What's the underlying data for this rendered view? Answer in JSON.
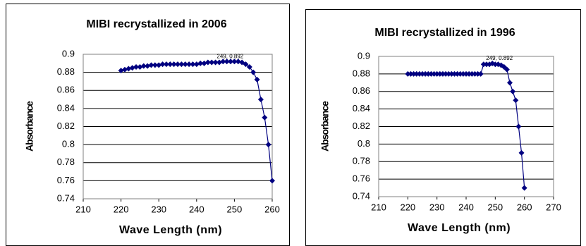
{
  "chart_data": [
    {
      "type": "line",
      "title": "MIBI recrystallized in 2006",
      "xlabel": "Wave Length (nm)",
      "ylabel": "Absorbance",
      "annotation": "249, 0.892",
      "x": [
        220,
        221,
        222,
        223,
        224,
        225,
        226,
        227,
        228,
        229,
        230,
        231,
        232,
        233,
        234,
        235,
        236,
        237,
        238,
        239,
        240,
        241,
        242,
        243,
        244,
        245,
        246,
        247,
        248,
        249,
        250,
        251,
        252,
        253,
        254,
        255,
        256,
        257,
        258,
        259,
        260
      ],
      "series": [
        {
          "color": "#000080",
          "values": [
            0.882,
            0.883,
            0.884,
            0.885,
            0.886,
            0.886,
            0.887,
            0.887,
            0.888,
            0.888,
            0.888,
            0.889,
            0.889,
            0.889,
            0.889,
            0.889,
            0.889,
            0.889,
            0.889,
            0.889,
            0.889,
            0.89,
            0.89,
            0.891,
            0.891,
            0.891,
            0.891,
            0.892,
            0.892,
            0.892,
            0.892,
            0.892,
            0.891,
            0.889,
            0.886,
            0.88,
            0.872,
            0.85,
            0.83,
            0.8,
            0.76
          ]
        }
      ],
      "xlim": [
        210,
        260
      ],
      "xticks": [
        210,
        220,
        230,
        240,
        250,
        260
      ],
      "ylim": [
        0.74,
        0.9
      ],
      "yticks": [
        0.74,
        0.76,
        0.78,
        0.8,
        0.82,
        0.84,
        0.86,
        0.88,
        0.9
      ],
      "grid": true
    },
    {
      "type": "line",
      "title": "MIBI recrystallized in 1996",
      "xlabel": "Wave Length (nm)",
      "ylabel": "Absorbance",
      "annotation": "249, 0.892",
      "x": [
        220,
        221,
        222,
        223,
        224,
        225,
        226,
        227,
        228,
        229,
        230,
        231,
        232,
        233,
        234,
        235,
        236,
        237,
        238,
        239,
        240,
        241,
        242,
        243,
        244,
        245,
        246,
        247,
        248,
        249,
        250,
        251,
        252,
        253,
        254,
        255,
        256,
        257,
        258,
        259,
        260
      ],
      "series": [
        {
          "color": "#000080",
          "values": [
            0.88,
            0.88,
            0.88,
            0.88,
            0.88,
            0.88,
            0.88,
            0.88,
            0.88,
            0.88,
            0.88,
            0.88,
            0.88,
            0.88,
            0.88,
            0.88,
            0.88,
            0.88,
            0.88,
            0.88,
            0.88,
            0.88,
            0.88,
            0.88,
            0.88,
            0.88,
            0.891,
            0.891,
            0.891,
            0.892,
            0.891,
            0.891,
            0.89,
            0.888,
            0.885,
            0.87,
            0.86,
            0.85,
            0.82,
            0.79,
            0.75
          ]
        }
      ],
      "xlim": [
        210,
        270
      ],
      "xticks": [
        210,
        220,
        230,
        240,
        250,
        260,
        270
      ],
      "ylim": [
        0.74,
        0.9
      ],
      "yticks": [
        0.74,
        0.76,
        0.78,
        0.8,
        0.82,
        0.84,
        0.86,
        0.88,
        0.9
      ],
      "grid": true
    }
  ]
}
